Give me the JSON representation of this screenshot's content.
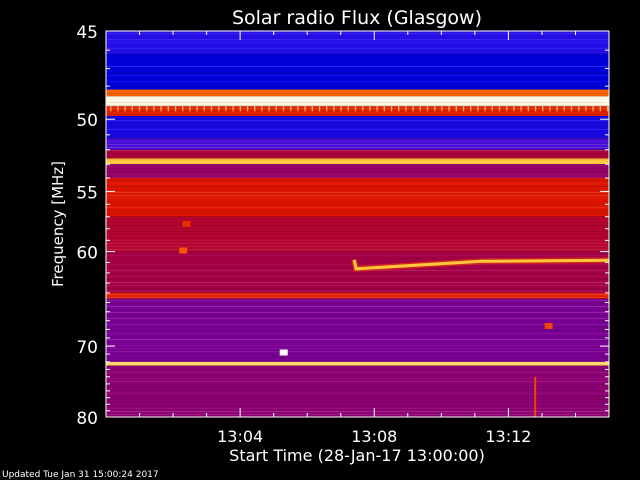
{
  "chart_data": {
    "type": "heatmap",
    "title": "Solar radio Flux (Glasgow)",
    "xlabel": "Start Time (28-Jan-17 13:00:00)",
    "ylabel": "Frequency [MHz]",
    "x_unit": "minutes after 13:00",
    "xlim": [
      0,
      15
    ],
    "ylim": [
      45,
      80
    ],
    "x_ticks": [
      {
        "label": "13:04",
        "value": 4
      },
      {
        "label": "13:08",
        "value": 8
      },
      {
        "label": "13:12",
        "value": 12
      }
    ],
    "y_ticks": [
      {
        "label": "45",
        "value": 45
      },
      {
        "label": "50",
        "value": 50
      },
      {
        "label": "55",
        "value": 55
      },
      {
        "label": "60",
        "value": 60
      },
      {
        "label": "70",
        "value": 70
      },
      {
        "label": "80",
        "value": 80
      }
    ],
    "intensity_scale": "low=blue, mid=red, high=white",
    "bands": [
      {
        "f0": 45.0,
        "f1": 46.2,
        "level": 0.22
      },
      {
        "f0": 46.2,
        "f1": 48.2,
        "level": 0.12
      },
      {
        "f0": 48.2,
        "f1": 48.6,
        "level": 0.7
      },
      {
        "f0": 48.6,
        "f1": 49.2,
        "level": 0.98
      },
      {
        "f0": 49.2,
        "f1": 49.8,
        "level": 0.6
      },
      {
        "f0": 49.8,
        "f1": 51.2,
        "level": 0.18
      },
      {
        "f0": 51.2,
        "f1": 52.0,
        "level": 0.3
      },
      {
        "f0": 52.0,
        "f1": 52.6,
        "level": 0.48
      },
      {
        "f0": 52.6,
        "f1": 53.0,
        "level": 0.85
      },
      {
        "f0": 53.0,
        "f1": 54.0,
        "level": 0.44
      },
      {
        "f0": 54.0,
        "f1": 57.0,
        "level": 0.58
      },
      {
        "f0": 57.0,
        "f1": 60.0,
        "level": 0.5
      },
      {
        "f0": 60.0,
        "f1": 64.0,
        "level": 0.47
      },
      {
        "f0": 64.0,
        "f1": 64.6,
        "level": 0.6
      },
      {
        "f0": 64.6,
        "f1": 72.0,
        "level": 0.4
      },
      {
        "f0": 72.0,
        "f1": 72.5,
        "level": 0.88
      },
      {
        "f0": 72.5,
        "f1": 80.0,
        "level": 0.43
      }
    ],
    "features": [
      {
        "type": "drifting",
        "t0": 7.4,
        "t1": 15,
        "f_start": 61.6,
        "f_end": 60.8,
        "level": 0.85
      },
      {
        "type": "spot",
        "t": 5.3,
        "f": 70.8,
        "level": 1.0
      },
      {
        "type": "spot",
        "t": 2.3,
        "f": 59.9,
        "level": 0.68
      },
      {
        "type": "spot",
        "t": 2.4,
        "f": 57.6,
        "level": 0.62
      },
      {
        "type": "spot",
        "t": 13.2,
        "f": 67.6,
        "level": 0.66
      },
      {
        "type": "vertical",
        "t": 12.8,
        "f0": 74.0,
        "f1": 80.0,
        "level": 0.66
      }
    ]
  },
  "footer": {
    "updated": "Updated Tue Jan 31 15:00:24 2017"
  }
}
